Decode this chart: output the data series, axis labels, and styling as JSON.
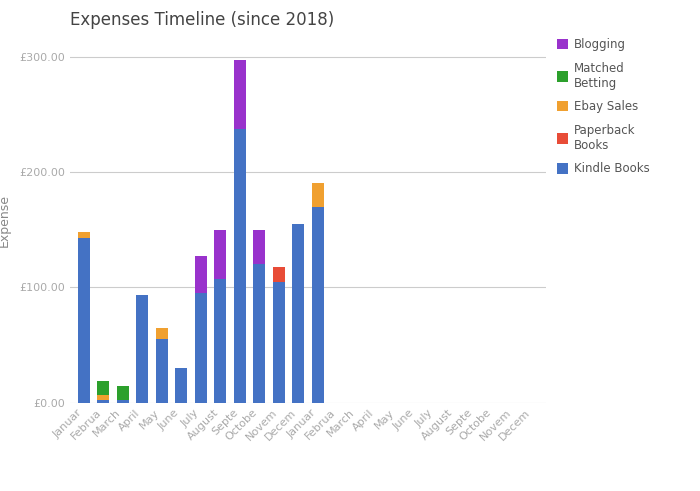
{
  "title": "Expenses Timeline (since 2018)",
  "ylabel": "Expense",
  "categories": [
    "Januar",
    "Februa",
    "March",
    "April",
    "May",
    "June",
    "July",
    "August",
    "Septe",
    "Octobe",
    "Novem",
    "Decem",
    "Januar",
    "Februa",
    "March",
    "April",
    "May",
    "June",
    "July",
    "August",
    "Septe",
    "Octobe",
    "Novem",
    "Decem"
  ],
  "kindle_books": [
    143,
    2,
    2,
    93,
    55,
    30,
    95,
    107,
    237,
    120,
    105,
    155,
    170,
    0,
    0,
    0,
    0,
    0,
    0,
    0,
    0,
    0,
    0,
    0
  ],
  "paperback_books": [
    0,
    0,
    0,
    0,
    0,
    0,
    0,
    0,
    0,
    0,
    13,
    0,
    0,
    0,
    0,
    0,
    0,
    0,
    0,
    0,
    0,
    0,
    0,
    0
  ],
  "ebay_sales": [
    5,
    5,
    0,
    0,
    10,
    0,
    0,
    0,
    0,
    0,
    0,
    0,
    20,
    0,
    0,
    0,
    0,
    0,
    0,
    0,
    0,
    0,
    0,
    0
  ],
  "matched_betting": [
    0,
    12,
    12,
    0,
    0,
    0,
    0,
    0,
    0,
    0,
    0,
    0,
    0,
    0,
    0,
    0,
    0,
    0,
    0,
    0,
    0,
    0,
    0,
    0
  ],
  "blogging": [
    0,
    0,
    0,
    0,
    0,
    0,
    32,
    43,
    60,
    30,
    0,
    0,
    0,
    0,
    0,
    0,
    0,
    0,
    0,
    0,
    0,
    0,
    0,
    0
  ],
  "colors": {
    "kindle_books": "#4472c4",
    "paperback_books": "#e84c37",
    "ebay_sales": "#f0a030",
    "matched_betting": "#2ca02c",
    "blogging": "#9932cc"
  },
  "yticks": [
    0,
    100,
    200,
    300
  ],
  "ylim": [
    0,
    315
  ],
  "background_color": "#ffffff",
  "grid_color": "#cccccc",
  "title_fontsize": 12,
  "tick_fontsize": 8,
  "ylabel_fontsize": 9
}
